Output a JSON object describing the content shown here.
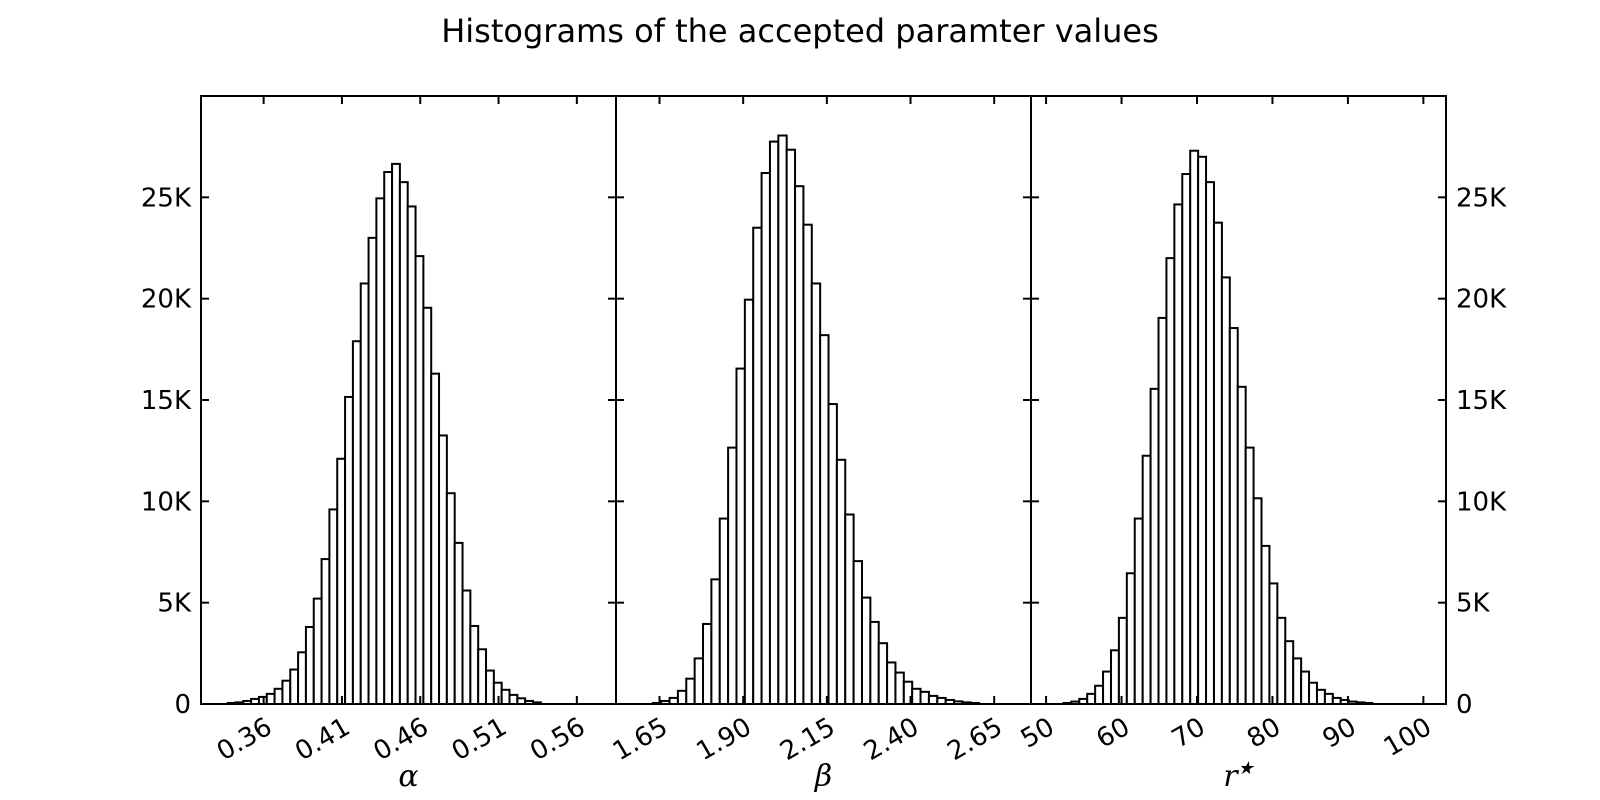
{
  "chart_data": {
    "type": "bar",
    "title": "Histograms of the accepted paramter values",
    "ylim": [
      0,
      30000
    ],
    "yticks": [
      0,
      5000,
      10000,
      15000,
      20000,
      25000
    ],
    "ytick_labels": [
      "0",
      "5K",
      "10K",
      "15K",
      "20K",
      "25K"
    ],
    "grid": false,
    "panels": [
      {
        "name": "alpha",
        "xlabel": "α",
        "xlim": [
          0.32,
          0.585
        ],
        "xticks": [
          0.36,
          0.41,
          0.46,
          0.51,
          0.56
        ],
        "xtick_labels": [
          "0.36",
          "0.41",
          "0.46",
          "0.51",
          "0.56"
        ],
        "bin_start": 0.337,
        "bin_width": 0.005,
        "values": [
          50,
          80,
          150,
          250,
          350,
          500,
          750,
          1150,
          1700,
          2550,
          3800,
          5200,
          7150,
          9600,
          12100,
          15150,
          17900,
          20750,
          23000,
          24950,
          26250,
          26650,
          25750,
          24550,
          22100,
          19550,
          16300,
          13250,
          10400,
          7950,
          5600,
          3850,
          2700,
          1650,
          1050,
          700,
          450,
          280,
          150,
          80
        ]
      },
      {
        "name": "beta",
        "xlabel": "β",
        "xlim": [
          1.52,
          2.76
        ],
        "xticks": [
          1.65,
          1.9,
          2.15,
          2.4,
          2.65
        ],
        "xtick_labels": [
          "1.65",
          "1.90",
          "2.15",
          "2.40",
          "2.65"
        ],
        "bin_start": 1.63,
        "bin_width": 0.025,
        "values": [
          50,
          150,
          300,
          650,
          1250,
          2250,
          3950,
          6150,
          9150,
          12650,
          16550,
          19950,
          23500,
          26200,
          27750,
          28050,
          27350,
          25550,
          23650,
          20750,
          18200,
          14800,
          12050,
          9350,
          7050,
          5250,
          4050,
          3000,
          2050,
          1550,
          1100,
          750,
          600,
          400,
          300,
          200,
          130,
          80,
          50
        ]
      },
      {
        "name": "r_star",
        "xlabel": "r*",
        "xlim": [
          48,
          103
        ],
        "xticks": [
          50,
          60,
          70,
          80,
          90,
          100
        ],
        "xtick_labels": [
          "50",
          "60",
          "70",
          "80",
          "90",
          "100"
        ],
        "bin_start": 52.3,
        "bin_width": 1.05,
        "values": [
          50,
          120,
          250,
          500,
          900,
          1600,
          2650,
          4250,
          6450,
          9150,
          12250,
          15550,
          19050,
          22000,
          24650,
          26150,
          27300,
          27000,
          25750,
          23750,
          21050,
          18550,
          15650,
          12650,
          10150,
          7800,
          5950,
          4250,
          3100,
          2250,
          1600,
          1050,
          700,
          500,
          300,
          200,
          120,
          80,
          50
        ]
      }
    ]
  }
}
